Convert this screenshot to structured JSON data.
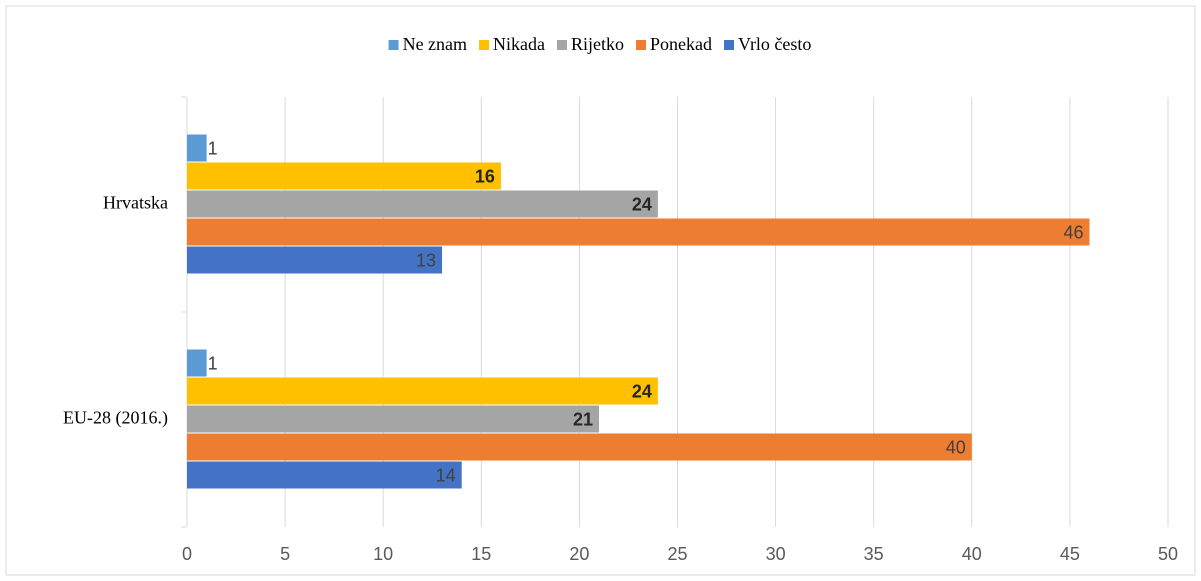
{
  "chart_data": {
    "type": "bar",
    "orientation": "horizontal",
    "categories": [
      "Hrvatska",
      "EU-28 (2016.)"
    ],
    "series": [
      {
        "name": "Ne znam",
        "color": "#5b9bd5",
        "values": [
          1,
          1
        ]
      },
      {
        "name": "Nikada",
        "color": "#ffc000",
        "values": [
          16,
          24
        ]
      },
      {
        "name": "Rijetko",
        "color": "#a5a5a5",
        "values": [
          24,
          21
        ]
      },
      {
        "name": "Ponekad",
        "color": "#ed7d31",
        "values": [
          46,
          40
        ]
      },
      {
        "name": "Vrlo često",
        "color": "#4472c4",
        "values": [
          13,
          14
        ]
      }
    ],
    "xlim": [
      0,
      50
    ],
    "xticks": [
      0,
      5,
      10,
      15,
      20,
      25,
      30,
      35,
      40,
      45,
      50
    ],
    "grid": true,
    "legend": "top"
  }
}
